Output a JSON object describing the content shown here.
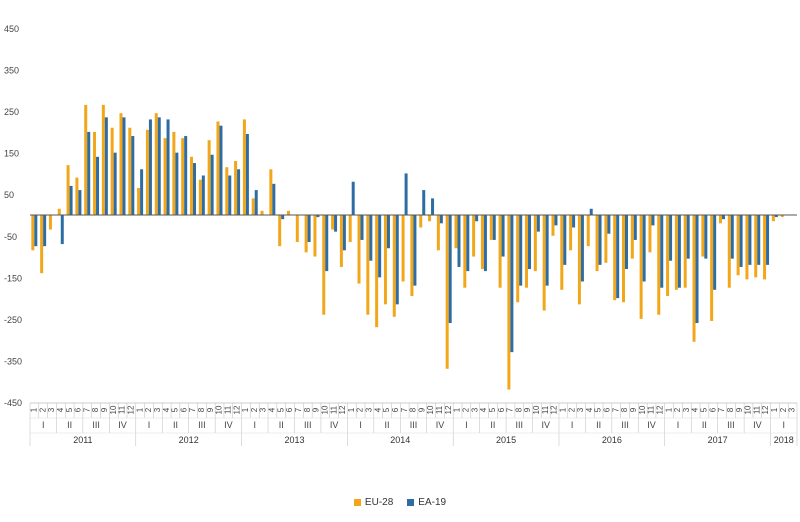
{
  "chart_data": {
    "type": "bar",
    "y_ticks": [
      450,
      350,
      250,
      150,
      50,
      -50,
      -150,
      -250,
      -350,
      -450
    ],
    "ylim": [
      -450,
      450
    ],
    "grid": false,
    "legend_placement": "bottom",
    "years": [
      {
        "label": "2011",
        "quarters": [
          "I",
          "II",
          "III",
          "IV"
        ]
      },
      {
        "label": "2012",
        "quarters": [
          "I",
          "II",
          "III",
          "IV"
        ]
      },
      {
        "label": "2013",
        "quarters": [
          "I",
          "II",
          "III",
          "IV"
        ]
      },
      {
        "label": "2014",
        "quarters": [
          "I",
          "II",
          "III",
          "IV"
        ]
      },
      {
        "label": "2015",
        "quarters": [
          "I",
          "II",
          "III",
          "IV"
        ]
      },
      {
        "label": "2016",
        "quarters": [
          "I",
          "II",
          "III",
          "IV"
        ]
      },
      {
        "label": "2017",
        "quarters": [
          "I",
          "II",
          "III",
          "IV"
        ]
      },
      {
        "label": "2018",
        "quarters": [
          "I"
        ]
      }
    ],
    "categories": [
      "1",
      "2",
      "3",
      "4",
      "5",
      "6",
      "7",
      "8",
      "9",
      "10",
      "11",
      "12",
      "1",
      "2",
      "3",
      "4",
      "5",
      "6",
      "7",
      "8",
      "9",
      "10",
      "11",
      "12",
      "1",
      "2",
      "3",
      "4",
      "5",
      "6",
      "7",
      "8",
      "9",
      "10",
      "11",
      "12",
      "1",
      "2",
      "3",
      "4",
      "5",
      "6",
      "7",
      "8",
      "9",
      "10",
      "11",
      "12",
      "1",
      "2",
      "3",
      "4",
      "5",
      "6",
      "7",
      "8",
      "9",
      "10",
      "11",
      "12",
      "1",
      "2",
      "3",
      "4",
      "5",
      "6",
      "7",
      "8",
      "9",
      "10",
      "11",
      "12",
      "1",
      "2",
      "3",
      "4",
      "5",
      "6",
      "7",
      "8",
      "9",
      "10",
      "11",
      "12",
      "1",
      "2",
      "3"
    ],
    "series": [
      {
        "name": "EU-28",
        "color": "#F2A71B",
        "values": [
          -85,
          -140,
          -35,
          15,
          120,
          90,
          265,
          200,
          265,
          210,
          245,
          210,
          65,
          205,
          245,
          185,
          200,
          185,
          140,
          85,
          180,
          225,
          115,
          130,
          230,
          40,
          10,
          110,
          -75,
          10,
          -65,
          -90,
          -100,
          -240,
          -35,
          -125,
          -65,
          -165,
          -240,
          -270,
          -215,
          -245,
          -160,
          -195,
          -30,
          -15,
          -85,
          -370,
          -80,
          -175,
          -100,
          -130,
          -60,
          -175,
          -420,
          -210,
          -175,
          -135,
          -230,
          -50,
          -180,
          -85,
          -215,
          -75,
          -135,
          -115,
          -205,
          -210,
          -105,
          -250,
          -90,
          -240,
          -195,
          -180,
          -175,
          -305,
          -100,
          -255,
          -20,
          -175,
          -145,
          -155,
          -150,
          -155,
          -15,
          -5,
          0
        ]
      },
      {
        "name": "EA-19",
        "color": "#2E6DA4",
        "values": [
          -75,
          -75,
          0,
          -70,
          70,
          60,
          200,
          140,
          235,
          150,
          235,
          190,
          110,
          230,
          235,
          230,
          150,
          190,
          125,
          95,
          145,
          215,
          95,
          110,
          195,
          60,
          0,
          75,
          -10,
          0,
          0,
          -65,
          -5,
          -135,
          -40,
          -85,
          80,
          -60,
          -110,
          -150,
          -80,
          -215,
          100,
          -170,
          60,
          40,
          -20,
          -260,
          -125,
          -135,
          -15,
          -135,
          -60,
          -100,
          -330,
          -170,
          -130,
          -40,
          -170,
          -25,
          -120,
          -30,
          -160,
          15,
          -120,
          -45,
          -200,
          -130,
          -60,
          -160,
          -25,
          -175,
          -110,
          -175,
          -105,
          -260,
          -105,
          -180,
          -10,
          -105,
          -125,
          -120,
          -120,
          -120,
          -5,
          0,
          0
        ]
      }
    ]
  }
}
